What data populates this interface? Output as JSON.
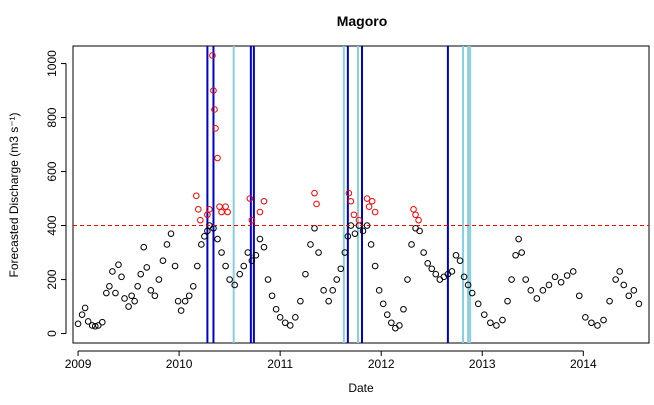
{
  "chart_data": {
    "type": "scatter",
    "title": "Magoro",
    "xlabel": "Date",
    "ylabel": "Forecasted Discharge (m3 s⁻¹)",
    "xlim": [
      2008.95,
      2014.65
    ],
    "ylim": [
      -35,
      1065
    ],
    "x_ticks": [
      2009,
      2010,
      2011,
      2012,
      2013,
      2014
    ],
    "y_ticks": [
      0,
      200,
      400,
      600,
      800,
      1000
    ],
    "threshold": {
      "value": 400,
      "color": "#ff0000",
      "style": "dashed"
    },
    "series": [
      {
        "marker": "open-circle",
        "color": "#000000",
        "values": [
          [
            2009.0,
            36
          ],
          [
            2009.04,
            70
          ],
          [
            2009.07,
            95
          ],
          [
            2009.1,
            45
          ],
          [
            2009.14,
            30
          ],
          [
            2009.17,
            27
          ],
          [
            2009.2,
            30
          ],
          [
            2009.24,
            42
          ],
          [
            2009.28,
            150
          ],
          [
            2009.31,
            175
          ],
          [
            2009.34,
            230
          ],
          [
            2009.37,
            150
          ],
          [
            2009.4,
            255
          ],
          [
            2009.43,
            210
          ],
          [
            2009.46,
            130
          ],
          [
            2009.5,
            100
          ],
          [
            2009.53,
            140
          ],
          [
            2009.56,
            120
          ],
          [
            2009.59,
            175
          ],
          [
            2009.62,
            220
          ],
          [
            2009.65,
            320
          ],
          [
            2009.68,
            245
          ],
          [
            2009.72,
            160
          ],
          [
            2009.76,
            140
          ],
          [
            2009.8,
            200
          ],
          [
            2009.84,
            270
          ],
          [
            2009.88,
            330
          ],
          [
            2009.92,
            370
          ],
          [
            2009.96,
            250
          ],
          [
            2009.99,
            120
          ],
          [
            2010.02,
            85
          ],
          [
            2010.06,
            120
          ],
          [
            2010.1,
            140
          ],
          [
            2010.14,
            175
          ],
          [
            2010.18,
            250
          ],
          [
            2010.22,
            330
          ],
          [
            2010.25,
            360
          ],
          [
            2010.28,
            380
          ],
          [
            2010.3,
            400
          ],
          [
            2010.34,
            390
          ],
          [
            2010.38,
            350
          ],
          [
            2010.42,
            300
          ],
          [
            2010.46,
            250
          ],
          [
            2010.5,
            200
          ],
          [
            2010.55,
            180
          ],
          [
            2010.6,
            220
          ],
          [
            2010.64,
            250
          ],
          [
            2010.68,
            300
          ],
          [
            2010.72,
            270
          ],
          [
            2010.76,
            290
          ],
          [
            2010.8,
            350
          ],
          [
            2010.84,
            320
          ],
          [
            2010.88,
            200
          ],
          [
            2010.92,
            140
          ],
          [
            2010.96,
            90
          ],
          [
            2011.0,
            60
          ],
          [
            2011.05,
            40
          ],
          [
            2011.1,
            30
          ],
          [
            2011.15,
            60
          ],
          [
            2011.2,
            120
          ],
          [
            2011.25,
            220
          ],
          [
            2011.3,
            330
          ],
          [
            2011.34,
            390
          ],
          [
            2011.38,
            300
          ],
          [
            2011.43,
            160
          ],
          [
            2011.48,
            120
          ],
          [
            2011.52,
            160
          ],
          [
            2011.56,
            200
          ],
          [
            2011.6,
            240
          ],
          [
            2011.64,
            300
          ],
          [
            2011.67,
            360
          ],
          [
            2011.7,
            400
          ],
          [
            2011.74,
            370
          ],
          [
            2011.78,
            400
          ],
          [
            2011.82,
            380
          ],
          [
            2011.86,
            400
          ],
          [
            2011.9,
            330
          ],
          [
            2011.94,
            250
          ],
          [
            2011.98,
            160
          ],
          [
            2012.02,
            110
          ],
          [
            2012.06,
            70
          ],
          [
            2012.1,
            40
          ],
          [
            2012.14,
            20
          ],
          [
            2012.18,
            30
          ],
          [
            2012.22,
            90
          ],
          [
            2012.26,
            200
          ],
          [
            2012.3,
            330
          ],
          [
            2012.34,
            390
          ],
          [
            2012.38,
            380
          ],
          [
            2012.42,
            300
          ],
          [
            2012.46,
            260
          ],
          [
            2012.5,
            240
          ],
          [
            2012.54,
            220
          ],
          [
            2012.58,
            200
          ],
          [
            2012.62,
            210
          ],
          [
            2012.66,
            220
          ],
          [
            2012.7,
            230
          ],
          [
            2012.74,
            290
          ],
          [
            2012.78,
            270
          ],
          [
            2012.82,
            210
          ],
          [
            2012.86,
            180
          ],
          [
            2012.9,
            150
          ],
          [
            2012.96,
            110
          ],
          [
            2013.02,
            70
          ],
          [
            2013.08,
            40
          ],
          [
            2013.14,
            30
          ],
          [
            2013.2,
            50
          ],
          [
            2013.25,
            120
          ],
          [
            2013.29,
            200
          ],
          [
            2013.33,
            290
          ],
          [
            2013.36,
            350
          ],
          [
            2013.39,
            300
          ],
          [
            2013.43,
            200
          ],
          [
            2013.48,
            160
          ],
          [
            2013.54,
            130
          ],
          [
            2013.6,
            160
          ],
          [
            2013.66,
            180
          ],
          [
            2013.72,
            210
          ],
          [
            2013.78,
            190
          ],
          [
            2013.84,
            215
          ],
          [
            2013.9,
            230
          ],
          [
            2013.96,
            140
          ],
          [
            2014.02,
            60
          ],
          [
            2014.08,
            40
          ],
          [
            2014.14,
            30
          ],
          [
            2014.2,
            50
          ],
          [
            2014.26,
            120
          ],
          [
            2014.32,
            200
          ],
          [
            2014.36,
            230
          ],
          [
            2014.4,
            180
          ],
          [
            2014.45,
            140
          ],
          [
            2014.5,
            160
          ],
          [
            2014.55,
            110
          ]
        ]
      },
      {
        "marker": "open-circle",
        "color": "#ff0000",
        "values": [
          [
            2010.17,
            510
          ],
          [
            2010.19,
            460
          ],
          [
            2010.21,
            420
          ],
          [
            2010.28,
            440
          ],
          [
            2010.3,
            460
          ],
          [
            2010.33,
            1030
          ],
          [
            2010.34,
            900
          ],
          [
            2010.35,
            830
          ],
          [
            2010.36,
            760
          ],
          [
            2010.38,
            650
          ],
          [
            2010.4,
            470
          ],
          [
            2010.42,
            450
          ],
          [
            2010.46,
            470
          ],
          [
            2010.48,
            450
          ],
          [
            2010.7,
            500
          ],
          [
            2010.72,
            420
          ],
          [
            2010.8,
            450
          ],
          [
            2010.84,
            490
          ],
          [
            2011.34,
            520
          ],
          [
            2011.36,
            480
          ],
          [
            2011.68,
            520
          ],
          [
            2011.7,
            490
          ],
          [
            2011.73,
            440
          ],
          [
            2011.78,
            420
          ],
          [
            2011.86,
            500
          ],
          [
            2011.88,
            470
          ],
          [
            2011.91,
            490
          ],
          [
            2011.94,
            450
          ],
          [
            2012.32,
            460
          ],
          [
            2012.34,
            440
          ],
          [
            2012.37,
            420
          ]
        ]
      }
    ],
    "vertical_markers": [
      {
        "color": "#0000cc",
        "x": 2010.28
      },
      {
        "color": "#0000cc",
        "x": 2010.34
      },
      {
        "color": "#87cedf",
        "x": 2010.54
      },
      {
        "color": "#0000cc",
        "x": 2010.71
      },
      {
        "color": "#0000cc",
        "x": 2010.74
      },
      {
        "color": "#87cedf",
        "x": 2011.63
      },
      {
        "color": "#0000cc",
        "x": 2011.67
      },
      {
        "color": "#87cedf",
        "x": 2011.77
      },
      {
        "color": "#0000cc",
        "x": 2011.81
      },
      {
        "color": "#0000cc",
        "x": 2012.66
      },
      {
        "color": "#87cedf",
        "x": 2012.81
      },
      {
        "color": "#87cedf",
        "x": 2012.86
      },
      {
        "color": "#87cedf",
        "x": 2012.88
      }
    ]
  }
}
